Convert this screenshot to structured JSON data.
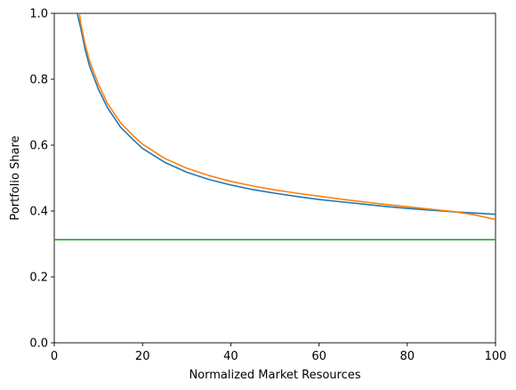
{
  "chart_data": {
    "type": "line",
    "title": "",
    "xlabel": "Normalized Market Resources",
    "ylabel": "Portfolio Share",
    "xlim": [
      0,
      100
    ],
    "ylim": [
      0.0,
      1.0
    ],
    "xticks": [
      0,
      20,
      40,
      60,
      80,
      100
    ],
    "yticks": [
      0.0,
      0.2,
      0.4,
      0.6,
      0.8,
      1.0
    ],
    "xtick_labels": [
      "0",
      "20",
      "40",
      "60",
      "80",
      "100"
    ],
    "ytick_labels": [
      "0.0",
      "0.2",
      "0.4",
      "0.6",
      "0.8",
      "1.0"
    ],
    "grid": false,
    "series": [
      {
        "color": "#1f77b4",
        "x": [
          5.2,
          6,
          7,
          8,
          10,
          12,
          15,
          18,
          20,
          25,
          30,
          35,
          40,
          45,
          50,
          55,
          60,
          65,
          70,
          75,
          80,
          85,
          90,
          95,
          100
        ],
        "y": [
          1.0,
          0.955,
          0.89,
          0.84,
          0.77,
          0.715,
          0.655,
          0.615,
          0.59,
          0.548,
          0.518,
          0.496,
          0.479,
          0.465,
          0.454,
          0.444,
          0.435,
          0.428,
          0.421,
          0.414,
          0.408,
          0.403,
          0.398,
          0.394,
          0.39
        ]
      },
      {
        "color": "#ff7f0e",
        "x": [
          5.7,
          6,
          7,
          8,
          10,
          12,
          15,
          18,
          20,
          25,
          30,
          35,
          40,
          45,
          50,
          55,
          60,
          65,
          70,
          75,
          80,
          85,
          90,
          95,
          100
        ],
        "y": [
          1.0,
          0.97,
          0.905,
          0.855,
          0.785,
          0.728,
          0.668,
          0.627,
          0.603,
          0.56,
          0.53,
          0.508,
          0.49,
          0.476,
          0.464,
          0.454,
          0.445,
          0.436,
          0.428,
          0.42,
          0.413,
          0.406,
          0.399,
          0.389,
          0.374
        ]
      },
      {
        "color": "#2ca02c",
        "x": [
          0,
          100
        ],
        "y": [
          0.313,
          0.313
        ]
      }
    ]
  }
}
